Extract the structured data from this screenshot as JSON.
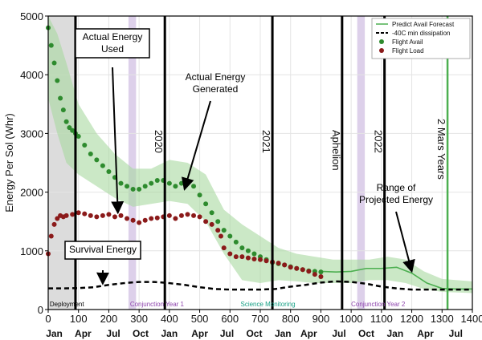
{
  "chart_data": {
    "type": "line",
    "ylabel": "Energy Per Sol (Whr)",
    "xlim": [
      0,
      1400
    ],
    "ylim": [
      0,
      5000
    ],
    "x_ticks": [
      0,
      100,
      200,
      300,
      400,
      500,
      600,
      700,
      800,
      900,
      1000,
      1100,
      1200,
      1300,
      1400
    ],
    "y_ticks": [
      0,
      1000,
      2000,
      3000,
      4000,
      5000
    ],
    "month_labels": [
      {
        "x": 20,
        "label": "Jan"
      },
      {
        "x": 115,
        "label": "Apr"
      },
      {
        "x": 215,
        "label": "Jul"
      },
      {
        "x": 305,
        "label": "Oct"
      },
      {
        "x": 400,
        "label": "Jan"
      },
      {
        "x": 500,
        "label": "Apr"
      },
      {
        "x": 590,
        "label": "Jul"
      },
      {
        "x": 680,
        "label": "Oct"
      },
      {
        "x": 775,
        "label": "Jan"
      },
      {
        "x": 860,
        "label": "Apr"
      },
      {
        "x": 960,
        "label": "Jul"
      },
      {
        "x": 1050,
        "label": "Oct"
      },
      {
        "x": 1145,
        "label": "Jan"
      },
      {
        "x": 1245,
        "label": "Apr"
      },
      {
        "x": 1345,
        "label": "Jul"
      }
    ],
    "vertical_lines": [
      {
        "x": 90,
        "label": "",
        "color": "#000000"
      },
      {
        "x": 385,
        "label": "2020",
        "color": "#000000"
      },
      {
        "x": 740,
        "label": "2021",
        "color": "#000000"
      },
      {
        "x": 970,
        "label": "Aphelion",
        "color": "#000000"
      },
      {
        "x": 1110,
        "label": "2022",
        "color": "#000000"
      },
      {
        "x": 1318,
        "label": "2 Mars Years",
        "color": "#4caf50"
      }
    ],
    "shaded_regions": [
      {
        "x0": 0,
        "x1": 90,
        "color": "#dcdcdc"
      },
      {
        "x0": 265,
        "x1": 290,
        "color": "#ddd0ea"
      },
      {
        "x0": 1020,
        "x1": 1045,
        "color": "#ddd0ea"
      }
    ],
    "phase_labels": [
      {
        "x": 5,
        "label": "Deployment",
        "color": "#000000"
      },
      {
        "x": 270,
        "label": "Conjunction Year 1",
        "color": "#8e44ad"
      },
      {
        "x": 635,
        "label": "Science Monitoring",
        "color": "#16a085"
      },
      {
        "x": 1000,
        "label": "Conjunction Year 2",
        "color": "#8e44ad"
      }
    ],
    "legend_position": "top-right",
    "series": [
      {
        "name": "Predict Avail Forecast",
        "style": "line",
        "color": "#4caf50",
        "x": [
          900,
          950,
          1000,
          1050,
          1100,
          1150,
          1200,
          1250,
          1300,
          1350,
          1400
        ],
        "y": [
          650,
          640,
          650,
          700,
          700,
          720,
          620,
          450,
          360,
          350,
          350
        ]
      },
      {
        "name": "-40C min dissipation",
        "style": "dashed",
        "color": "#000000",
        "x": [
          0,
          50,
          100,
          150,
          200,
          250,
          300,
          350,
          400,
          450,
          500,
          550,
          600,
          650,
          700,
          750,
          800,
          850,
          900,
          950,
          1000,
          1050,
          1100,
          1150,
          1200,
          1250,
          1300,
          1350,
          1400
        ],
        "y": [
          360,
          360,
          365,
          380,
          420,
          450,
          470,
          470,
          450,
          420,
          380,
          350,
          340,
          340,
          340,
          350,
          390,
          420,
          460,
          480,
          470,
          440,
          390,
          360,
          340,
          340,
          340,
          340,
          340
        ]
      },
      {
        "name": "Flight Avail",
        "style": "points",
        "color": "#2e8b2e",
        "x": [
          0,
          10,
          20,
          30,
          40,
          50,
          60,
          70,
          80,
          90,
          100,
          120,
          140,
          160,
          180,
          200,
          220,
          240,
          260,
          280,
          300,
          320,
          340,
          360,
          380,
          400,
          420,
          440,
          460,
          480,
          500,
          520,
          540,
          560,
          580,
          600,
          620,
          640,
          660,
          680,
          700,
          720,
          740,
          760,
          780,
          800,
          820,
          840,
          860,
          880,
          900
        ],
        "y": [
          4800,
          4500,
          4200,
          3900,
          3600,
          3400,
          3200,
          3100,
          3050,
          3000,
          2950,
          2800,
          2650,
          2550,
          2450,
          2350,
          2250,
          2150,
          2100,
          2050,
          2050,
          2100,
          2150,
          2200,
          2200,
          2150,
          2100,
          2150,
          2150,
          2100,
          1950,
          1800,
          1650,
          1500,
          1350,
          1250,
          1150,
          1050,
          1000,
          950,
          900,
          850,
          800,
          780,
          760,
          730,
          700,
          680,
          660,
          650,
          640
        ]
      },
      {
        "name": "Flight Load",
        "style": "points",
        "color": "#8b1a1a",
        "x": [
          0,
          10,
          20,
          30,
          40,
          50,
          60,
          80,
          100,
          120,
          140,
          160,
          180,
          200,
          220,
          240,
          260,
          280,
          300,
          320,
          340,
          360,
          380,
          400,
          420,
          440,
          460,
          480,
          500,
          520,
          540,
          560,
          570,
          580,
          600,
          620,
          640,
          660,
          680,
          700,
          720,
          740,
          760,
          780,
          800,
          820,
          840,
          860,
          880,
          900
        ],
        "y": [
          950,
          1250,
          1450,
          1550,
          1600,
          1580,
          1600,
          1620,
          1650,
          1630,
          1600,
          1580,
          1600,
          1620,
          1580,
          1600,
          1550,
          1520,
          1480,
          1520,
          1550,
          1560,
          1580,
          1600,
          1550,
          1600,
          1620,
          1600,
          1580,
          1500,
          1450,
          1350,
          1250,
          1050,
          950,
          900,
          900,
          880,
          860,
          850,
          830,
          810,
          790,
          760,
          720,
          700,
          680,
          650,
          600,
          560
        ]
      }
    ],
    "band_upper": [
      {
        "x": 0,
        "y": 5000
      },
      {
        "x": 30,
        "y": 4700
      },
      {
        "x": 60,
        "y": 4200
      },
      {
        "x": 100,
        "y": 3500
      },
      {
        "x": 160,
        "y": 3000
      },
      {
        "x": 220,
        "y": 2650
      },
      {
        "x": 280,
        "y": 2400
      },
      {
        "x": 340,
        "y": 2400
      },
      {
        "x": 400,
        "y": 2550
      },
      {
        "x": 460,
        "y": 2500
      },
      {
        "x": 520,
        "y": 2300
      },
      {
        "x": 580,
        "y": 1700
      },
      {
        "x": 640,
        "y": 1450
      },
      {
        "x": 700,
        "y": 1250
      },
      {
        "x": 760,
        "y": 1050
      },
      {
        "x": 820,
        "y": 950
      },
      {
        "x": 880,
        "y": 900
      },
      {
        "x": 940,
        "y": 850
      },
      {
        "x": 1000,
        "y": 850
      },
      {
        "x": 1060,
        "y": 850
      },
      {
        "x": 1120,
        "y": 900
      },
      {
        "x": 1180,
        "y": 850
      },
      {
        "x": 1240,
        "y": 650
      },
      {
        "x": 1300,
        "y": 520
      },
      {
        "x": 1400,
        "y": 480
      }
    ],
    "band_lower": [
      {
        "x": 0,
        "y": 3600
      },
      {
        "x": 30,
        "y": 3000
      },
      {
        "x": 60,
        "y": 2500
      },
      {
        "x": 100,
        "y": 2300
      },
      {
        "x": 160,
        "y": 2100
      },
      {
        "x": 220,
        "y": 1900
      },
      {
        "x": 280,
        "y": 1750
      },
      {
        "x": 340,
        "y": 1800
      },
      {
        "x": 400,
        "y": 1850
      },
      {
        "x": 460,
        "y": 1800
      },
      {
        "x": 520,
        "y": 1500
      },
      {
        "x": 580,
        "y": 950
      },
      {
        "x": 640,
        "y": 500
      },
      {
        "x": 700,
        "y": 450
      },
      {
        "x": 760,
        "y": 500
      },
      {
        "x": 820,
        "y": 480
      },
      {
        "x": 880,
        "y": 450
      },
      {
        "x": 940,
        "y": 450
      },
      {
        "x": 1000,
        "y": 450
      },
      {
        "x": 1060,
        "y": 500
      },
      {
        "x": 1120,
        "y": 500
      },
      {
        "x": 1180,
        "y": 450
      },
      {
        "x": 1240,
        "y": 350
      },
      {
        "x": 1300,
        "y": 300
      },
      {
        "x": 1400,
        "y": 280
      }
    ],
    "annotations": [
      {
        "lines": [
          "Actual Energy",
          "Used"
        ],
        "box": true,
        "arrow_to": [
          230,
          1650
        ]
      },
      {
        "lines": [
          "Actual Energy",
          "Generated"
        ],
        "box": false,
        "arrow_to": [
          450,
          2050
        ]
      },
      {
        "lines": [
          "Survival Energy"
        ],
        "box": true,
        "arrow_to": [
          180,
          440
        ]
      },
      {
        "lines": [
          "Range of",
          "Projected Energy"
        ],
        "box": false,
        "arrow_to": [
          1200,
          650
        ]
      }
    ]
  }
}
